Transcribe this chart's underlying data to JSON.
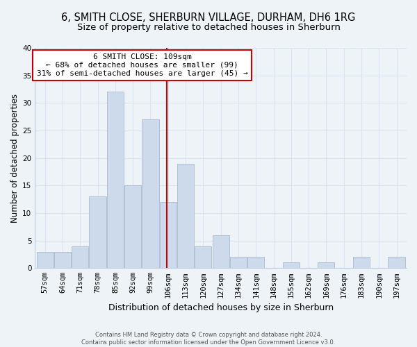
{
  "title": "6, SMITH CLOSE, SHERBURN VILLAGE, DURHAM, DH6 1RG",
  "subtitle": "Size of property relative to detached houses in Sherburn",
  "xlabel": "Distribution of detached houses by size in Sherburn",
  "ylabel": "Number of detached properties",
  "bar_edges": [
    57,
    64,
    71,
    78,
    85,
    92,
    99,
    106,
    113,
    120,
    127,
    134,
    141,
    148,
    155,
    162,
    169,
    176,
    183,
    190,
    197
  ],
  "bar_heights": [
    3,
    3,
    4,
    13,
    32,
    15,
    27,
    12,
    19,
    4,
    6,
    2,
    2,
    0,
    1,
    0,
    1,
    0,
    2,
    0,
    2
  ],
  "bar_color": "#ccdaeb",
  "bar_edgecolor": "#aabbcc",
  "property_value": 109,
  "vline_color": "#cc0000",
  "annotation_line1": "6 SMITH CLOSE: 109sqm",
  "annotation_line2": "← 68% of detached houses are smaller (99)",
  "annotation_line3": "31% of semi-detached houses are larger (45) →",
  "annotation_boxcolor": "#ffffff",
  "annotation_edgecolor": "#cc0000",
  "ylim": [
    0,
    40
  ],
  "yticks": [
    0,
    5,
    10,
    15,
    20,
    25,
    30,
    35,
    40
  ],
  "grid_color": "#d8e4ef",
  "background_color": "#eef3f8",
  "plot_bg_color": "#eef3f8",
  "footnote": "Contains HM Land Registry data © Crown copyright and database right 2024.\nContains public sector information licensed under the Open Government Licence v3.0.",
  "title_fontsize": 10.5,
  "subtitle_fontsize": 9.5,
  "xlabel_fontsize": 9,
  "ylabel_fontsize": 8.5,
  "annot_fontsize": 8,
  "tick_fontsize": 7.5,
  "footnote_fontsize": 6
}
